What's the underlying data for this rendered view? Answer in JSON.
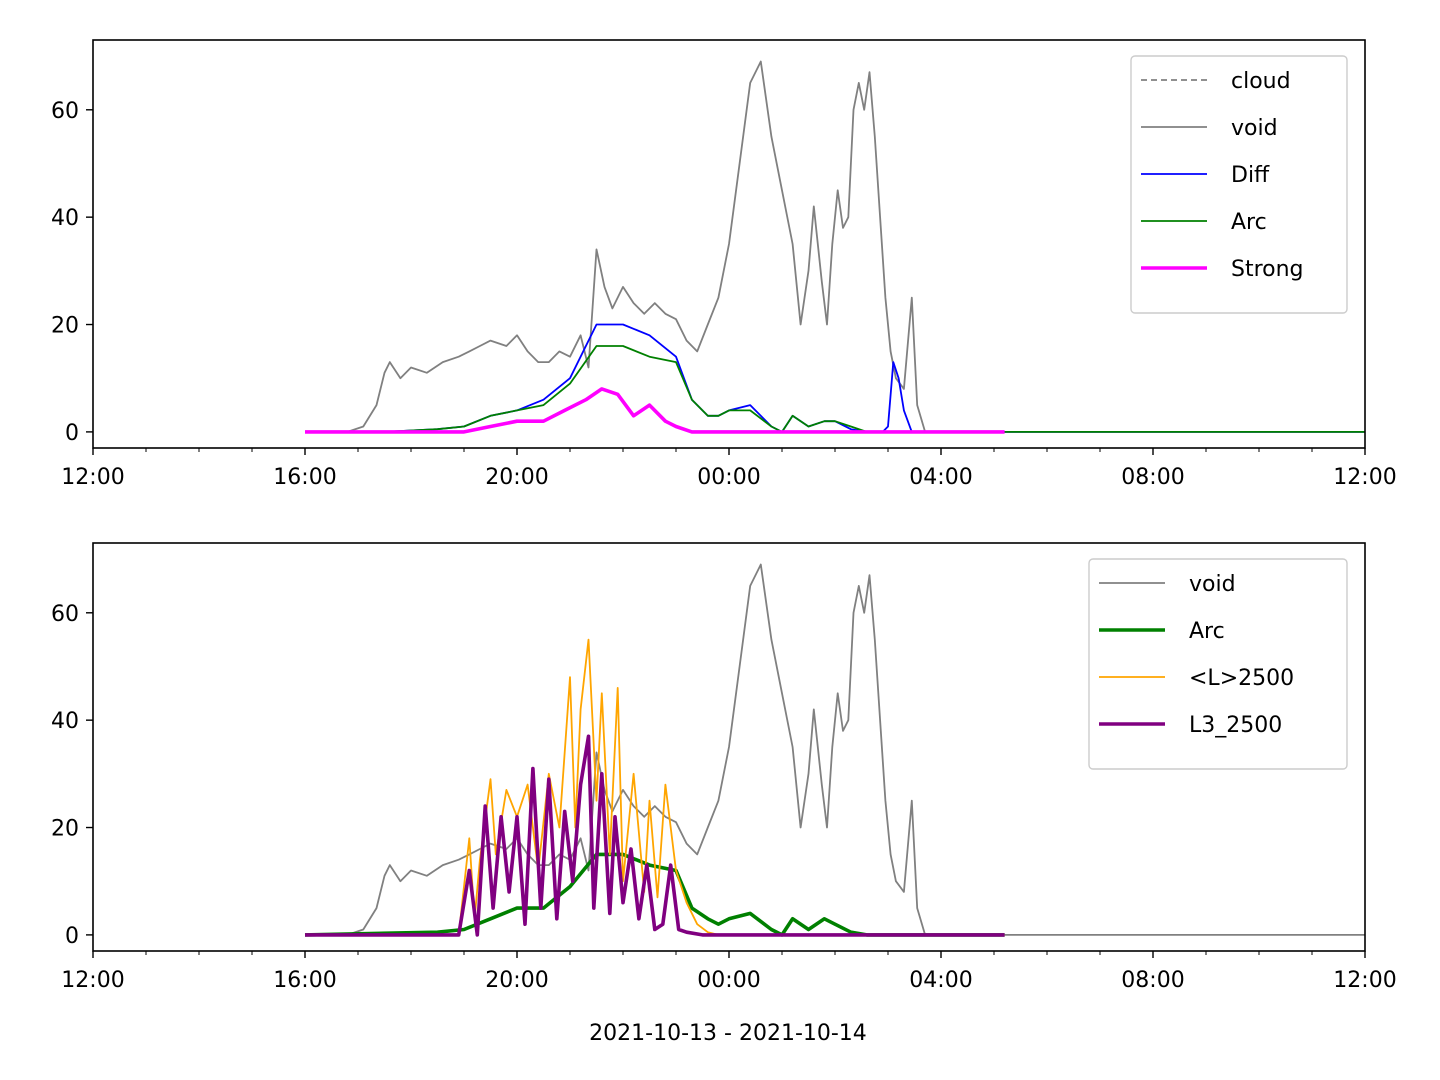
{
  "xlabel": "2021-10-13 - 2021-10-14",
  "x_ticks": [
    "12:00",
    "16:00",
    "20:00",
    "00:00",
    "04:00",
    "08:00",
    "12:00"
  ],
  "chart_data": [
    {
      "type": "line",
      "title": "",
      "xlabel": "",
      "ylabel": "",
      "x_unit": "hours since 2021-10-13 12:00",
      "xlim": [
        0,
        24
      ],
      "ylim": [
        -3,
        73
      ],
      "y_ticks": [
        0,
        20,
        40,
        60
      ],
      "grid": false,
      "legend_position": "top-right",
      "series": [
        {
          "name": "cloud",
          "color": "#808080",
          "style": "dashed",
          "x": [],
          "y": []
        },
        {
          "name": "void",
          "color": "#808080",
          "style": "solid",
          "x": [
            4.0,
            4.8,
            5.1,
            5.35,
            5.5,
            5.6,
            5.8,
            6.0,
            6.3,
            6.6,
            6.9,
            7.1,
            7.3,
            7.5,
            7.8,
            8.0,
            8.2,
            8.4,
            8.6,
            8.8,
            9.0,
            9.2,
            9.35,
            9.5,
            9.65,
            9.8,
            10.0,
            10.2,
            10.4,
            10.6,
            10.8,
            11.0,
            11.2,
            11.4,
            11.6,
            11.8,
            12.0,
            12.2,
            12.4,
            12.6,
            12.8,
            13.0,
            13.2,
            13.35,
            13.5,
            13.6,
            13.75,
            13.85,
            13.95,
            14.05,
            14.15,
            14.25,
            14.35,
            14.45,
            14.55,
            14.65,
            14.75,
            14.85,
            14.95,
            15.05,
            15.15,
            15.3,
            15.45,
            15.55,
            15.7,
            16.0,
            17.0,
            18.0,
            20.0,
            24.0
          ],
          "y": [
            0,
            0,
            1,
            5,
            11,
            13,
            10,
            12,
            11,
            13,
            14,
            15,
            16,
            17,
            16,
            18,
            15,
            13,
            13,
            15,
            14,
            18,
            12,
            34,
            27,
            23,
            27,
            24,
            22,
            24,
            22,
            21,
            17,
            15,
            20,
            25,
            35,
            50,
            65,
            69,
            55,
            45,
            35,
            20,
            30,
            42,
            28,
            20,
            35,
            45,
            38,
            40,
            60,
            65,
            60,
            67,
            55,
            40,
            25,
            15,
            10,
            8,
            25,
            5,
            0,
            0,
            0,
            0,
            0,
            0
          ]
        },
        {
          "name": "Diff",
          "color": "#0000ff",
          "style": "solid",
          "x": [
            4.0,
            5.5,
            6.5,
            7.0,
            7.5,
            8.0,
            8.5,
            9.0,
            9.5,
            10.0,
            10.5,
            11.0,
            11.3,
            11.6,
            11.8,
            12.0,
            12.4,
            12.8,
            13.0,
            13.2,
            13.5,
            13.8,
            14.0,
            14.3,
            14.6,
            14.9,
            15.0,
            15.1,
            15.2,
            15.3,
            15.45,
            15.6,
            16.0,
            17.0,
            20.0,
            24.0
          ],
          "y": [
            0,
            0,
            0.5,
            1,
            3,
            4,
            6,
            10,
            20,
            20,
            18,
            14,
            6,
            3,
            3,
            4,
            5,
            1,
            0,
            3,
            1,
            2,
            2,
            0.5,
            0,
            0,
            1,
            13,
            10,
            4,
            0,
            0,
            0,
            0,
            0,
            0
          ]
        },
        {
          "name": "Arc",
          "color": "#008000",
          "style": "solid",
          "x": [
            4.0,
            5.5,
            6.5,
            7.0,
            7.5,
            8.0,
            8.5,
            9.0,
            9.5,
            10.0,
            10.5,
            11.0,
            11.3,
            11.6,
            11.8,
            12.0,
            12.4,
            12.8,
            13.0,
            13.2,
            13.5,
            13.8,
            14.0,
            14.3,
            14.6,
            14.9,
            15.0,
            15.2,
            15.5,
            16.0,
            17.0,
            20.0,
            24.0
          ],
          "y": [
            0,
            0,
            0.5,
            1,
            3,
            4,
            5,
            9,
            16,
            16,
            14,
            13,
            6,
            3,
            3,
            4,
            4,
            1,
            0,
            3,
            1,
            2,
            2,
            1,
            0,
            0,
            0,
            0,
            0,
            0,
            0,
            0,
            0
          ]
        },
        {
          "name": "Strong",
          "color": "#ff00ff",
          "style": "thick",
          "x": [
            4.0,
            6.5,
            7.0,
            7.5,
            8.0,
            8.5,
            8.9,
            9.3,
            9.6,
            9.9,
            10.2,
            10.5,
            10.8,
            11.0,
            11.3,
            11.6,
            12.0,
            16.0,
            17.2
          ],
          "y": [
            0,
            0,
            0,
            1,
            2,
            2,
            4,
            6,
            8,
            7,
            3,
            5,
            2,
            1,
            0,
            0,
            0,
            0,
            0
          ]
        }
      ]
    },
    {
      "type": "line",
      "title": "",
      "xlabel": "2021-10-13 - 2021-10-14",
      "ylabel": "",
      "x_unit": "hours since 2021-10-13 12:00",
      "xlim": [
        0,
        24
      ],
      "ylim": [
        -3,
        73
      ],
      "y_ticks": [
        0,
        20,
        40,
        60
      ],
      "grid": false,
      "legend_position": "top-right",
      "series": [
        {
          "name": "void",
          "color": "#808080",
          "style": "solid",
          "x": [
            4.0,
            4.8,
            5.1,
            5.35,
            5.5,
            5.6,
            5.8,
            6.0,
            6.3,
            6.6,
            6.9,
            7.1,
            7.3,
            7.5,
            7.8,
            8.0,
            8.2,
            8.4,
            8.6,
            8.8,
            9.0,
            9.2,
            9.35,
            9.5,
            9.65,
            9.8,
            10.0,
            10.2,
            10.4,
            10.6,
            10.8,
            11.0,
            11.2,
            11.4,
            11.6,
            11.8,
            12.0,
            12.2,
            12.4,
            12.6,
            12.8,
            13.0,
            13.2,
            13.35,
            13.5,
            13.6,
            13.75,
            13.85,
            13.95,
            14.05,
            14.15,
            14.25,
            14.35,
            14.45,
            14.55,
            14.65,
            14.75,
            14.85,
            14.95,
            15.05,
            15.15,
            15.3,
            15.45,
            15.55,
            15.7,
            16.0,
            17.0,
            18.0,
            20.0,
            24.0
          ],
          "y": [
            0,
            0,
            1,
            5,
            11,
            13,
            10,
            12,
            11,
            13,
            14,
            15,
            16,
            17,
            16,
            18,
            15,
            13,
            13,
            15,
            14,
            18,
            12,
            34,
            27,
            23,
            27,
            24,
            22,
            24,
            22,
            21,
            17,
            15,
            20,
            25,
            35,
            50,
            65,
            69,
            55,
            45,
            35,
            20,
            30,
            42,
            28,
            20,
            35,
            45,
            38,
            40,
            60,
            65,
            60,
            67,
            55,
            40,
            25,
            15,
            10,
            8,
            25,
            5,
            0,
            0,
            0,
            0,
            0,
            0
          ]
        },
        {
          "name": "Arc",
          "color": "#008000",
          "style": "thick",
          "x": [
            4.0,
            6.5,
            7.0,
            7.5,
            8.0,
            8.5,
            9.0,
            9.5,
            10.0,
            10.5,
            11.0,
            11.3,
            11.6,
            11.8,
            12.0,
            12.4,
            12.8,
            13.0,
            13.2,
            13.5,
            13.8,
            14.0,
            14.3,
            14.6,
            15.0,
            16.0,
            17.2
          ],
          "y": [
            0,
            0.5,
            1,
            3,
            5,
            5,
            9,
            15,
            15,
            13,
            12,
            5,
            3,
            2,
            3,
            4,
            1,
            0,
            3,
            1,
            3,
            2,
            0.5,
            0,
            0,
            0,
            0
          ]
        },
        {
          "name": "<L>2500",
          "color": "#ffa500",
          "style": "solid",
          "x": [
            4.0,
            6.9,
            7.1,
            7.2,
            7.3,
            7.5,
            7.6,
            7.8,
            8.0,
            8.2,
            8.4,
            8.6,
            8.8,
            9.0,
            9.1,
            9.2,
            9.35,
            9.5,
            9.6,
            9.75,
            9.9,
            10.0,
            10.2,
            10.4,
            10.5,
            10.65,
            10.8,
            11.0,
            11.2,
            11.4,
            11.6,
            11.8,
            12.0,
            16.0,
            17.2
          ],
          "y": [
            0,
            0,
            18,
            3,
            14,
            29,
            15,
            27,
            22,
            28,
            12,
            30,
            20,
            48,
            20,
            42,
            55,
            25,
            45,
            15,
            46,
            10,
            30,
            8,
            25,
            7,
            28,
            12,
            6,
            2,
            0.5,
            0,
            0,
            0,
            0
          ]
        },
        {
          "name": "L3_2500",
          "color": "#800080",
          "style": "thick",
          "x": [
            4.0,
            6.9,
            7.1,
            7.25,
            7.4,
            7.55,
            7.7,
            7.85,
            8.0,
            8.15,
            8.3,
            8.45,
            8.6,
            8.75,
            8.9,
            9.05,
            9.2,
            9.35,
            9.45,
            9.6,
            9.75,
            9.85,
            10.0,
            10.15,
            10.3,
            10.45,
            10.6,
            10.75,
            10.9,
            11.05,
            11.2,
            11.5,
            12.0,
            16.0,
            17.2
          ],
          "y": [
            0,
            0,
            12,
            0,
            24,
            5,
            22,
            8,
            22,
            2,
            31,
            5,
            29,
            3,
            23,
            10,
            28,
            37,
            5,
            30,
            4,
            22,
            6,
            16,
            3,
            13,
            1,
            2,
            13,
            1,
            0.5,
            0,
            0,
            0,
            0
          ]
        }
      ]
    }
  ]
}
